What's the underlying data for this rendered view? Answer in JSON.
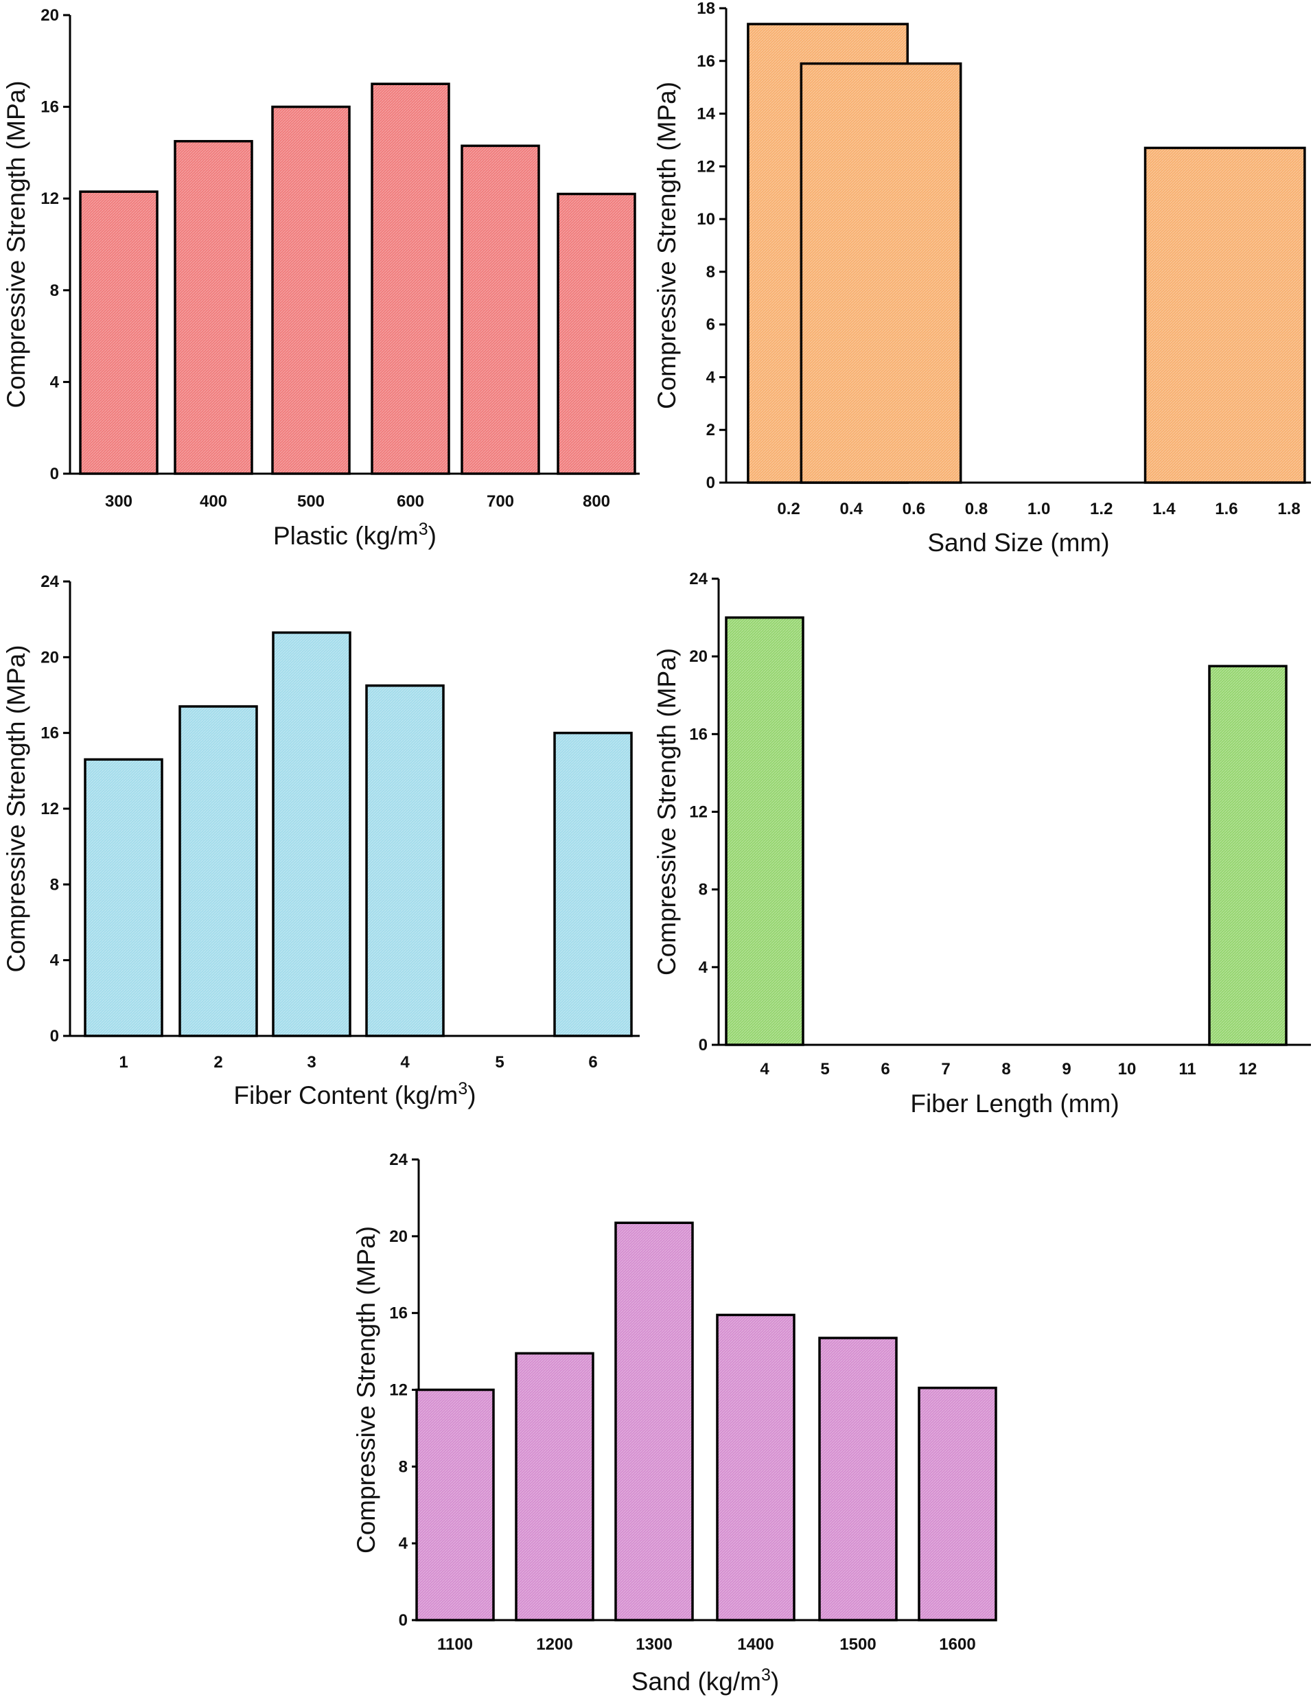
{
  "chart_data": [
    {
      "type": "bar",
      "panel": "top-left",
      "xlabel": "Plastic (kg/m",
      "xlabel_sup": "3",
      "xlabel_end": ")",
      "ylabel": "Compressive Strength (MPa)",
      "categories": [
        "300",
        "400",
        "500",
        "600",
        "700",
        "800"
      ],
      "values": [
        12.3,
        14.5,
        16.0,
        17.0,
        14.3,
        12.2
      ],
      "ylim": [
        0,
        20
      ],
      "yticks": [
        0,
        4,
        8,
        12,
        16,
        20
      ],
      "color": "#f07c7c"
    },
    {
      "type": "bar",
      "panel": "top-right",
      "xlabel": "Sand Size (mm)",
      "xlabel_sup": "",
      "xlabel_end": "",
      "ylabel": "Compressive Strength (MPa)",
      "xticks": [
        "0.2",
        "0.4",
        "0.6",
        "0.8",
        "1.0",
        "1.2",
        "1.4",
        "1.6",
        "1.8"
      ],
      "bars": [
        {
          "x0": 0.07,
          "x1": 0.58,
          "value": 17.4
        },
        {
          "x0": 0.24,
          "x1": 0.75,
          "value": 15.9
        },
        {
          "x0": 1.34,
          "x1": 1.85,
          "value": 12.7
        }
      ],
      "xlim": [
        0.0,
        1.87
      ],
      "ylim": [
        0,
        18
      ],
      "yticks": [
        0,
        2,
        4,
        6,
        8,
        10,
        12,
        14,
        16,
        18
      ],
      "color": "#f8b070"
    },
    {
      "type": "bar",
      "panel": "middle-left",
      "xlabel": "Fiber Content (kg/m",
      "xlabel_sup": "3",
      "xlabel_end": ")",
      "ylabel": "Compressive Strength (MPa)",
      "categories": [
        "1",
        "2",
        "3",
        "4",
        "5",
        "6"
      ],
      "values": [
        14.6,
        17.4,
        21.3,
        18.5,
        null,
        16.0
      ],
      "ylim": [
        0,
        24
      ],
      "yticks": [
        0,
        4,
        8,
        12,
        16,
        20,
        24
      ],
      "color": "#a3dceb"
    },
    {
      "type": "bar",
      "panel": "middle-right",
      "xlabel": "Fiber Length (mm)",
      "xlabel_sup": "",
      "xlabel_end": "",
      "ylabel": "Compressive Strength (MPa)",
      "categories": [
        "4",
        "5",
        "6",
        "7",
        "8",
        "9",
        "10",
        "11",
        "12"
      ],
      "values": [
        22.0,
        null,
        null,
        null,
        null,
        null,
        null,
        null,
        19.5
      ],
      "ylim": [
        0,
        24
      ],
      "yticks": [
        0,
        4,
        8,
        12,
        16,
        20,
        24
      ],
      "color": "#95d56f"
    },
    {
      "type": "bar",
      "panel": "bottom",
      "xlabel": "Sand (kg/m",
      "xlabel_sup": "3",
      "xlabel_end": ")",
      "ylabel": "Compressive Strength (MPa)",
      "categories": [
        "1100",
        "1200",
        "1300",
        "1400",
        "1500",
        "1600"
      ],
      "values": [
        12.0,
        13.9,
        20.7,
        15.9,
        14.7,
        12.1
      ],
      "ylim": [
        0,
        24
      ],
      "yticks": [
        0,
        4,
        8,
        12,
        16,
        20,
        24
      ],
      "color": "#d58ed0"
    }
  ]
}
